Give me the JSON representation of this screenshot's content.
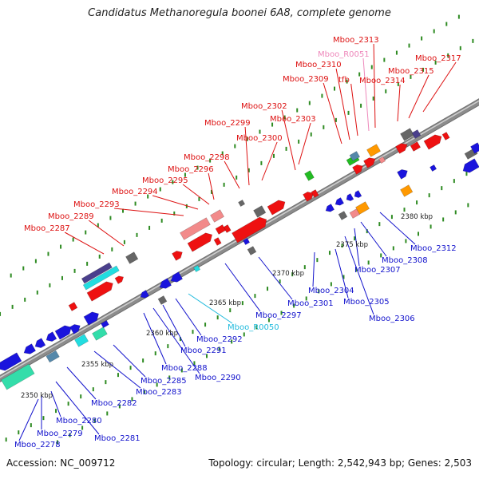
{
  "title": "Candidatus Methanoregula boonei 6A8, complete genome",
  "footer": {
    "accession": "Accession: NC_009712",
    "summary": "Topology: circular; Length: 2,542,943 bp; Genes: 2,503"
  },
  "colors": {
    "top_label": "#dd1111",
    "bottom_label": "#1111cc",
    "rna_top_label": "#ee88bb",
    "rna_bottom_label": "#22bbdd",
    "backbone": "#8c8c8c",
    "tick": "#2e8b22"
  },
  "scale_labels": [
    "2350 kbp",
    "2355 kbp",
    "2360 kbp",
    "2365 kbp",
    "2370 kbp",
    "2375 kbp",
    "2380 kbp"
  ],
  "top_genes": [
    {
      "label": "Mboo_2287",
      "color": "#dd1111"
    },
    {
      "label": "Mboo_2289",
      "color": "#dd1111"
    },
    {
      "label": "Mboo_2293",
      "color": "#dd1111"
    },
    {
      "label": "Mboo_2294",
      "color": "#dd1111"
    },
    {
      "label": "Mboo_2295",
      "color": "#dd1111"
    },
    {
      "label": "Mboo_2296",
      "color": "#dd1111"
    },
    {
      "label": "Mboo_2298",
      "color": "#dd1111"
    },
    {
      "label": "Mboo_2299",
      "color": "#dd1111"
    },
    {
      "label": "Mboo_2300",
      "color": "#dd1111"
    },
    {
      "label": "Mboo_2302",
      "color": "#dd1111"
    },
    {
      "label": "Mboo_2303",
      "color": "#dd1111"
    },
    {
      "label": "Mboo_2309",
      "color": "#dd1111"
    },
    {
      "label": "Mboo_2310",
      "color": "#dd1111"
    },
    {
      "label": "Mboo_R0051",
      "color": "#ee88bb"
    },
    {
      "label": "tfb",
      "color": "#dd1111"
    },
    {
      "label": "Mboo_2313",
      "color": "#dd1111"
    },
    {
      "label": "Mboo_2314",
      "color": "#dd1111"
    },
    {
      "label": "Mboo_2315",
      "color": "#dd1111"
    },
    {
      "label": "Mboo_2317",
      "color": "#dd1111"
    }
  ],
  "bottom_genes": [
    {
      "label": "Mboo_2278",
      "color": "#1111cc"
    },
    {
      "label": "Mboo_2279",
      "color": "#1111cc"
    },
    {
      "label": "Mboo_2280",
      "color": "#1111cc"
    },
    {
      "label": "Mboo_2281",
      "color": "#1111cc"
    },
    {
      "label": "Mboo_2282",
      "color": "#1111cc"
    },
    {
      "label": "Mboo_2283",
      "color": "#1111cc"
    },
    {
      "label": "Mboo_2285",
      "color": "#1111cc"
    },
    {
      "label": "Mboo_2288",
      "color": "#1111cc"
    },
    {
      "label": "Mboo_2290",
      "color": "#1111cc"
    },
    {
      "label": "Mboo_2291",
      "color": "#1111cc"
    },
    {
      "label": "Mboo_2292",
      "color": "#1111cc"
    },
    {
      "label": "Mboo_R0050",
      "color": "#22bbdd"
    },
    {
      "label": "Mboo_2297",
      "color": "#1111cc"
    },
    {
      "label": "Mboo_2301",
      "color": "#1111cc"
    },
    {
      "label": "Mboo_2304",
      "color": "#1111cc"
    },
    {
      "label": "Mboo_2305",
      "color": "#1111cc"
    },
    {
      "label": "Mboo_2306",
      "color": "#1111cc"
    },
    {
      "label": "Mboo_2307",
      "color": "#1111cc"
    },
    {
      "label": "Mboo_2308",
      "color": "#1111cc"
    },
    {
      "label": "Mboo_2312",
      "color": "#1111cc"
    }
  ]
}
